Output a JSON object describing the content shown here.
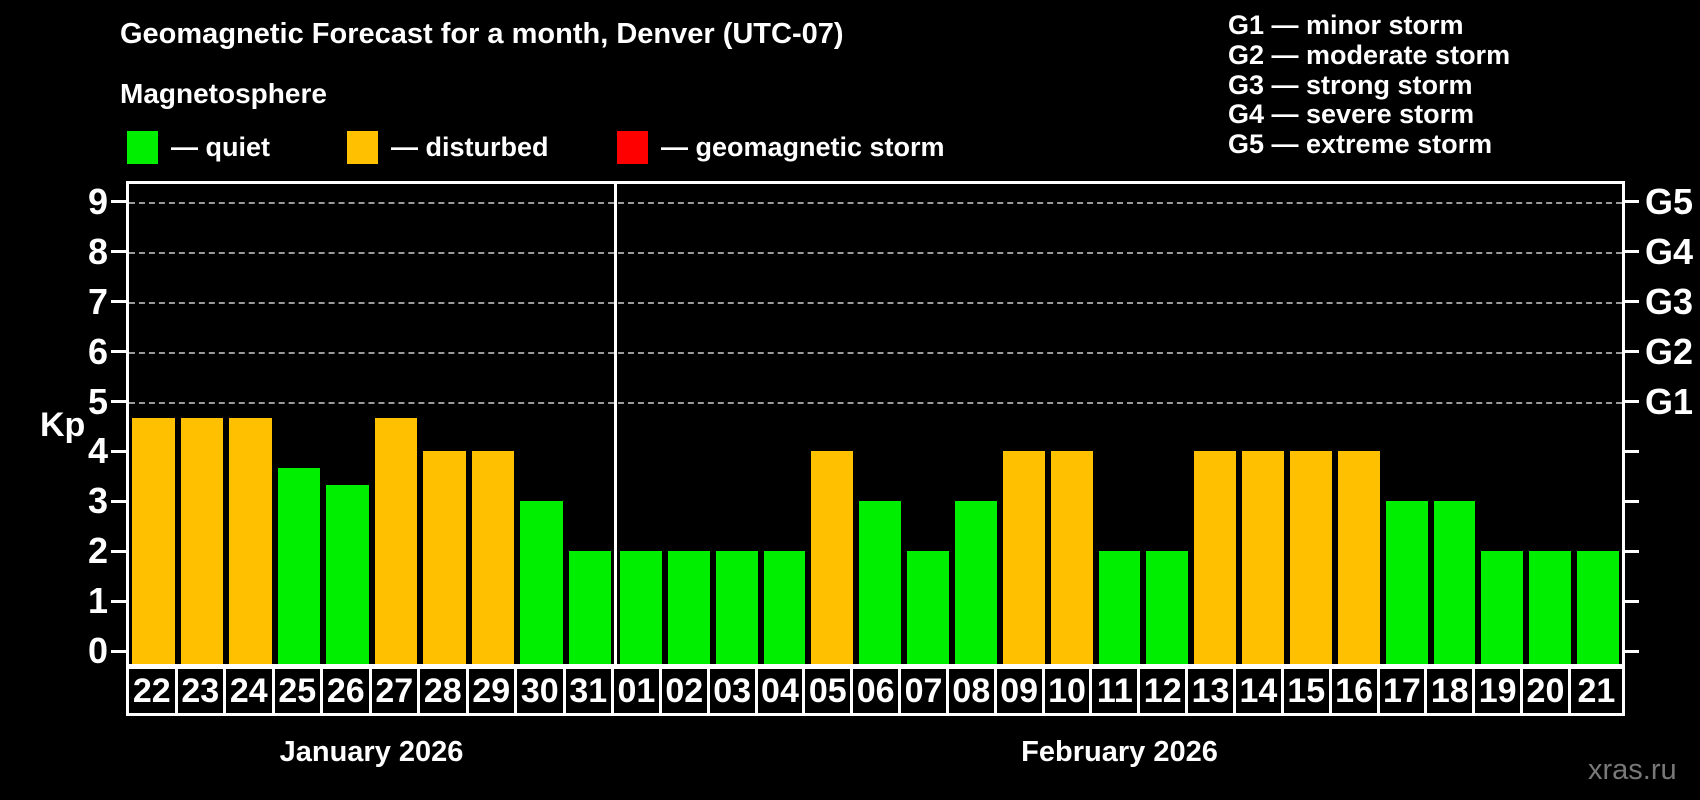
{
  "title": "Geomagnetic Forecast for a month, Denver (UTC-07)",
  "subtitle": "Magnetosphere",
  "condition_legend": [
    {
      "name": "quiet",
      "label": "— quiet",
      "color": "#00ee00"
    },
    {
      "name": "disturbed",
      "label": "— disturbed",
      "color": "#ffc000"
    },
    {
      "name": "storm",
      "label": "— geomagnetic storm",
      "color": "#ff0000"
    }
  ],
  "storm_scale_legend": [
    "G1 — minor storm",
    "G2 — moderate storm",
    "G3 — strong storm",
    "G4 — severe storm",
    "G5 — extreme storm"
  ],
  "watermark": "xras.ru",
  "chart_data": {
    "type": "bar",
    "title": "Geomagnetic Forecast for a month, Denver (UTC-07)",
    "subtitle": "Magnetosphere",
    "ylabel": "Kp",
    "ylim": [
      0,
      9.4
    ],
    "yticks": [
      0,
      1,
      2,
      3,
      4,
      5,
      6,
      7,
      8,
      9
    ],
    "gridlines_at_kp": [
      5,
      6,
      7,
      8,
      9
    ],
    "grid": "horizontal dashed lines at Kp 5-9 only",
    "legend_position": "top",
    "right_axis_labels": [
      {
        "text": "G1",
        "kp": 5
      },
      {
        "text": "G2",
        "kp": 6
      },
      {
        "text": "G3",
        "kp": 7
      },
      {
        "text": "G4",
        "kp": 8
      },
      {
        "text": "G5",
        "kp": 9
      }
    ],
    "color_map": {
      "quiet": "#00ee00",
      "disturbed": "#ffc000",
      "storm": "#ff0000"
    },
    "months": [
      {
        "label": "January 2026",
        "bars": [
          {
            "day": "22",
            "kp": 4.67,
            "status": "disturbed"
          },
          {
            "day": "23",
            "kp": 4.67,
            "status": "disturbed"
          },
          {
            "day": "24",
            "kp": 4.67,
            "status": "disturbed"
          },
          {
            "day": "25",
            "kp": 3.67,
            "status": "quiet"
          },
          {
            "day": "26",
            "kp": 3.33,
            "status": "quiet"
          },
          {
            "day": "27",
            "kp": 4.67,
            "status": "disturbed"
          },
          {
            "day": "28",
            "kp": 4,
            "status": "disturbed"
          },
          {
            "day": "29",
            "kp": 4,
            "status": "disturbed"
          },
          {
            "day": "30",
            "kp": 3,
            "status": "quiet"
          },
          {
            "day": "31",
            "kp": 2,
            "status": "quiet"
          }
        ]
      },
      {
        "label": "February 2026",
        "bars": [
          {
            "day": "01",
            "kp": 2,
            "status": "quiet"
          },
          {
            "day": "02",
            "kp": 2,
            "status": "quiet"
          },
          {
            "day": "03",
            "kp": 2,
            "status": "quiet"
          },
          {
            "day": "04",
            "kp": 2,
            "status": "quiet"
          },
          {
            "day": "05",
            "kp": 4,
            "status": "disturbed"
          },
          {
            "day": "06",
            "kp": 3,
            "status": "quiet"
          },
          {
            "day": "07",
            "kp": 2,
            "status": "quiet"
          },
          {
            "day": "08",
            "kp": 3,
            "status": "quiet"
          },
          {
            "day": "09",
            "kp": 4,
            "status": "disturbed"
          },
          {
            "day": "10",
            "kp": 4,
            "status": "disturbed"
          },
          {
            "day": "11",
            "kp": 2,
            "status": "quiet"
          },
          {
            "day": "12",
            "kp": 2,
            "status": "quiet"
          },
          {
            "day": "13",
            "kp": 4,
            "status": "disturbed"
          },
          {
            "day": "14",
            "kp": 4,
            "status": "disturbed"
          },
          {
            "day": "15",
            "kp": 4,
            "status": "disturbed"
          },
          {
            "day": "16",
            "kp": 4,
            "status": "disturbed"
          },
          {
            "day": "17",
            "kp": 3,
            "status": "quiet"
          },
          {
            "day": "18",
            "kp": 3,
            "status": "quiet"
          },
          {
            "day": "19",
            "kp": 2,
            "status": "quiet"
          },
          {
            "day": "20",
            "kp": 2,
            "status": "quiet"
          },
          {
            "day": "21",
            "kp": 2,
            "status": "quiet"
          }
        ]
      }
    ]
  }
}
